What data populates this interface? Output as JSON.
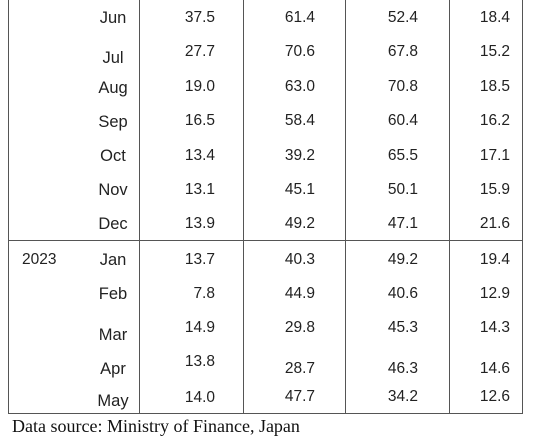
{
  "table": {
    "rows": [
      {
        "month": "Jun",
        "cells": [
          "37.5",
          "61.4",
          "52.4",
          "18.4"
        ]
      },
      {
        "month": "Jul",
        "cells": [
          "27.7",
          "70.6",
          "67.8",
          "15.2"
        ]
      },
      {
        "month": "Aug",
        "cells": [
          "19.0",
          "63.0",
          "70.8",
          "18.5"
        ]
      },
      {
        "month": "Sep",
        "cells": [
          "16.5",
          "58.4",
          "60.4",
          "16.2"
        ]
      },
      {
        "month": "Oct",
        "cells": [
          "13.4",
          "39.2",
          "65.5",
          "17.1"
        ]
      },
      {
        "month": "Nov",
        "cells": [
          "13.1",
          "45.1",
          "50.1",
          "15.9"
        ]
      },
      {
        "month": "Dec",
        "cells": [
          "13.9",
          "49.2",
          "47.1",
          "21.6"
        ]
      },
      {
        "year": "2023",
        "month": "Jan",
        "cells": [
          "13.7",
          "40.3",
          "49.2",
          "19.4"
        ]
      },
      {
        "month": "Feb",
        "cells": [
          "7.8",
          "44.9",
          "40.6",
          "12.9"
        ]
      },
      {
        "month": "Mar",
        "cells": [
          "14.9",
          "29.8",
          "45.3",
          "14.3"
        ]
      },
      {
        "month": "Apr",
        "cells": [
          "13.8",
          "28.7",
          "46.3",
          "14.6"
        ]
      },
      {
        "month": "May",
        "cells": [
          "14.0",
          "47.7",
          "34.2",
          "12.6"
        ]
      }
    ]
  },
  "footer": "Data source: Ministry of Finance, Japan"
}
